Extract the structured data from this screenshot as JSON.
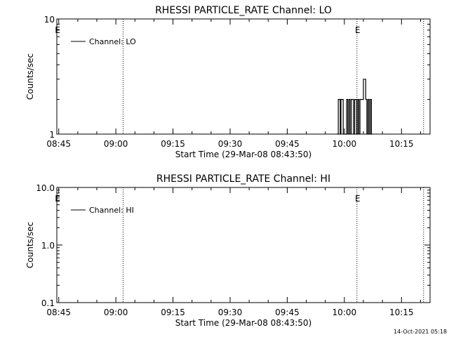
{
  "chart_data": [
    {
      "type": "line",
      "title": "RHESSI PARTICLE_RATE Channel: LO",
      "xlabel": "Start Time (29-Mar-08 08:43:50)",
      "ylabel": "Counts/sec",
      "y_scale": "log",
      "ylim": [
        1,
        10
      ],
      "y_ticks": [
        {
          "value": 1,
          "label": "1"
        },
        {
          "value": 10,
          "label": "10"
        }
      ],
      "x_domain_minutes": [
        -0.5,
        97.5
      ],
      "x_ticks": [
        {
          "minutes": 0,
          "label": "08:45"
        },
        {
          "minutes": 15,
          "label": "09:00"
        },
        {
          "minutes": 30,
          "label": "09:15"
        },
        {
          "minutes": 45,
          "label": "09:30"
        },
        {
          "minutes": 60,
          "label": "09:45"
        },
        {
          "minutes": 75,
          "label": "10:00"
        },
        {
          "minutes": 90,
          "label": "10:15"
        }
      ],
      "event_lines_minutes": [
        16.9,
        78.3,
        95.8
      ],
      "event_marks": [
        {
          "minutes": -0.3,
          "label": "E"
        },
        {
          "minutes": 78.5,
          "label": "E"
        }
      ],
      "legend": {
        "position": "top-left",
        "label": "Channel: LO"
      },
      "series": [
        {
          "name": "Channel: LO",
          "x_minutes": [
            73.0,
            73.4,
            73.6,
            73.9,
            74.1,
            74.4,
            74.7,
            75.0,
            75.3,
            75.6,
            75.9,
            76.2,
            76.5,
            76.8,
            77.1,
            77.4,
            77.7,
            77.9,
            78.2,
            78.5,
            78.8,
            79.1,
            79.4,
            79.7,
            80.0,
            80.3,
            80.6,
            80.9,
            81.2,
            81.5,
            81.8,
            82.1
          ],
          "values": [
            1,
            2,
            2,
            1,
            2,
            2,
            1,
            1,
            1,
            2,
            1,
            2,
            1,
            2,
            2,
            1,
            2,
            2,
            1,
            2,
            1,
            2,
            2,
            2,
            3,
            3,
            2,
            1,
            2,
            1,
            2,
            1
          ]
        }
      ]
    },
    {
      "type": "line",
      "title": "RHESSI PARTICLE_RATE Channel: HI",
      "xlabel": "Start Time (29-Mar-08 08:43:50)",
      "ylabel": "Counts/sec",
      "y_scale": "log",
      "ylim": [
        0.1,
        10
      ],
      "y_ticks": [
        {
          "value": 0.1,
          "label": "0.1"
        },
        {
          "value": 1,
          "label": "1.0"
        },
        {
          "value": 10,
          "label": "10.0"
        }
      ],
      "x_domain_minutes": [
        -0.5,
        97.5
      ],
      "x_ticks": [
        {
          "minutes": 0,
          "label": "08:45"
        },
        {
          "minutes": 15,
          "label": "09:00"
        },
        {
          "minutes": 30,
          "label": "09:15"
        },
        {
          "minutes": 45,
          "label": "09:30"
        },
        {
          "minutes": 60,
          "label": "09:45"
        },
        {
          "minutes": 75,
          "label": "10:00"
        },
        {
          "minutes": 90,
          "label": "10:15"
        }
      ],
      "event_lines_minutes": [
        16.9,
        78.3,
        95.8
      ],
      "event_marks": [
        {
          "minutes": -0.3,
          "label": "E"
        },
        {
          "minutes": 78.5,
          "label": "E"
        }
      ],
      "legend": {
        "position": "top-left",
        "label": "Channel: HI"
      },
      "series": [
        {
          "name": "Channel: HI",
          "x_minutes": [],
          "values": []
        }
      ]
    }
  ],
  "footer": {
    "timestamp": "14-Oct-2021 05:18"
  }
}
